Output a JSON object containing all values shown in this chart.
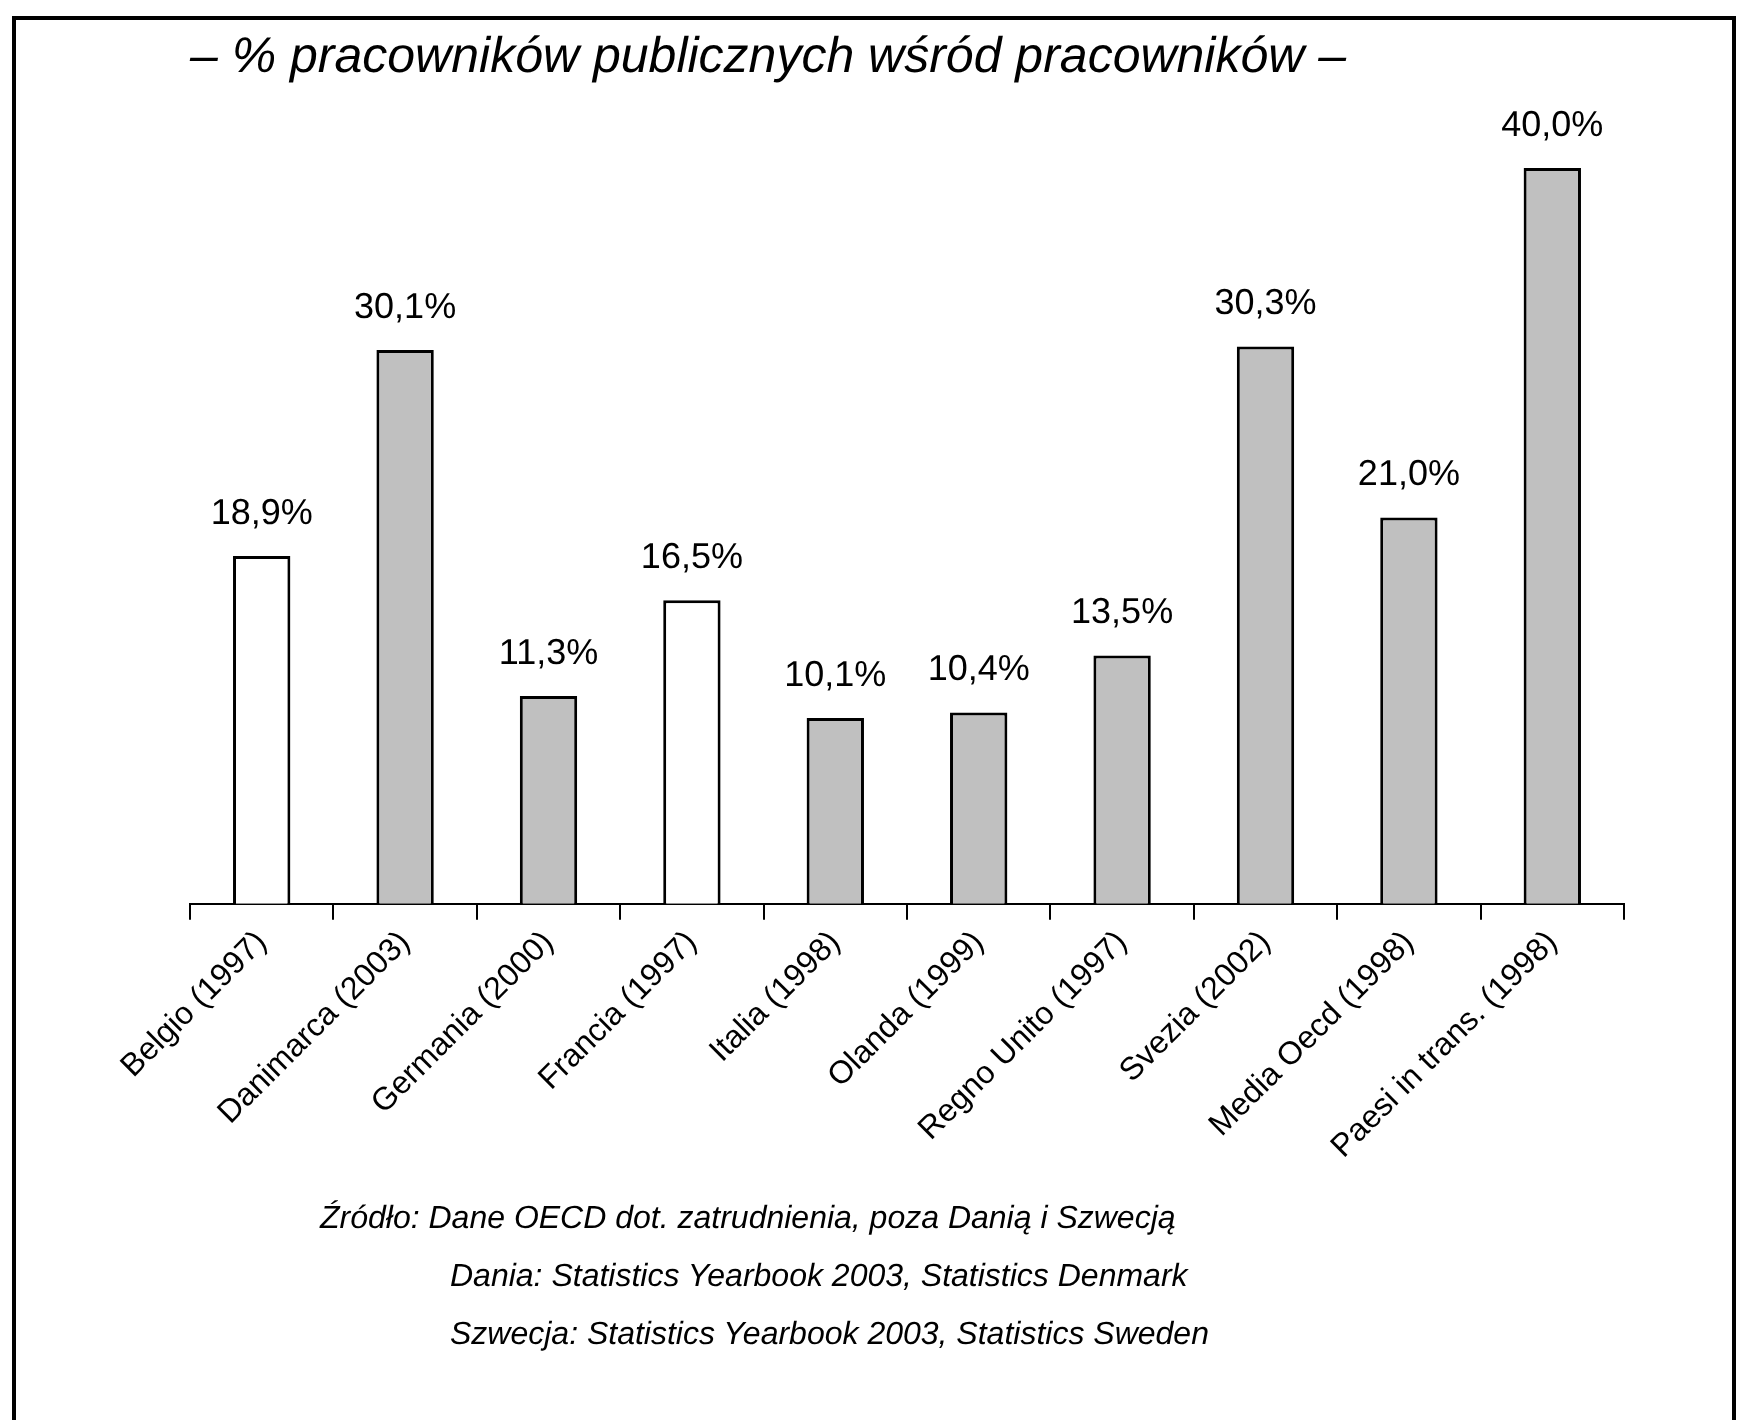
{
  "chart_data": {
    "type": "bar",
    "title": "– % pracowników publicznych wśród pracowników –",
    "categories": [
      "Belgio (1997)",
      "Danimarca (2003)",
      "Germania (2000)",
      "Francia (1997)",
      "Italia (1998)",
      "Olanda (1999)",
      "Regno Unito (1997)",
      "Svezia (2002)",
      "Media Oecd (1998)",
      "Paesi in trans. (1998)"
    ],
    "values": [
      18.9,
      30.1,
      11.3,
      16.5,
      10.1,
      10.4,
      13.5,
      30.3,
      21.0,
      40.0
    ],
    "value_labels": [
      "18,9%",
      "30,1%",
      "11,3%",
      "16,5%",
      "10,1%",
      "10,4%",
      "13,5%",
      "30,3%",
      "21,0%",
      "40,0%"
    ],
    "colors": [
      "#ffffff",
      "#c0c0c0",
      "#c0c0c0",
      "#ffffff",
      "#c0c0c0",
      "#c0c0c0",
      "#c0c0c0",
      "#c0c0c0",
      "#c0c0c0",
      "#c0c0c0"
    ],
    "grid": false,
    "legend": false,
    "tick_labels": "x",
    "annotations": [
      "Źródło: Dane OECD dot. zatrudnienia, poza Danią i Szwecją",
      "Dania: Statistics Yearbook 2003, Statistics Denmark",
      "Szwecja: Statistics Yearbook 2003, Statistics Sweden"
    ]
  }
}
